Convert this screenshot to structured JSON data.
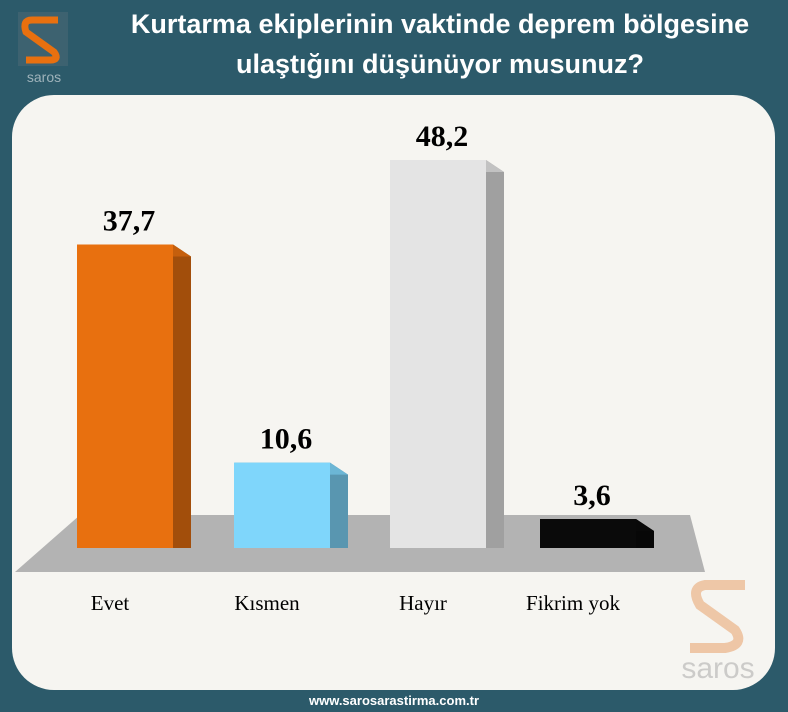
{
  "chart_data": {
    "type": "bar3d",
    "title": "Kurtarma ekiplerinin vaktinde deprem bölgesine ulaştığını düşünüyor musunuz?",
    "categories": [
      "Evet",
      "Kısmen",
      "Hayır",
      "Fikrim yok"
    ],
    "values": [
      37.7,
      10.6,
      48.2,
      3.6
    ],
    "value_labels": [
      "37,7",
      "10,6",
      "48,2",
      "3,6"
    ],
    "colors": [
      "#e8700f",
      "#7fd6fb",
      "#e4e4e4",
      "#0a0a0a"
    ],
    "logo": "saros",
    "footer": "www.sarosarastirma.com.tr"
  }
}
